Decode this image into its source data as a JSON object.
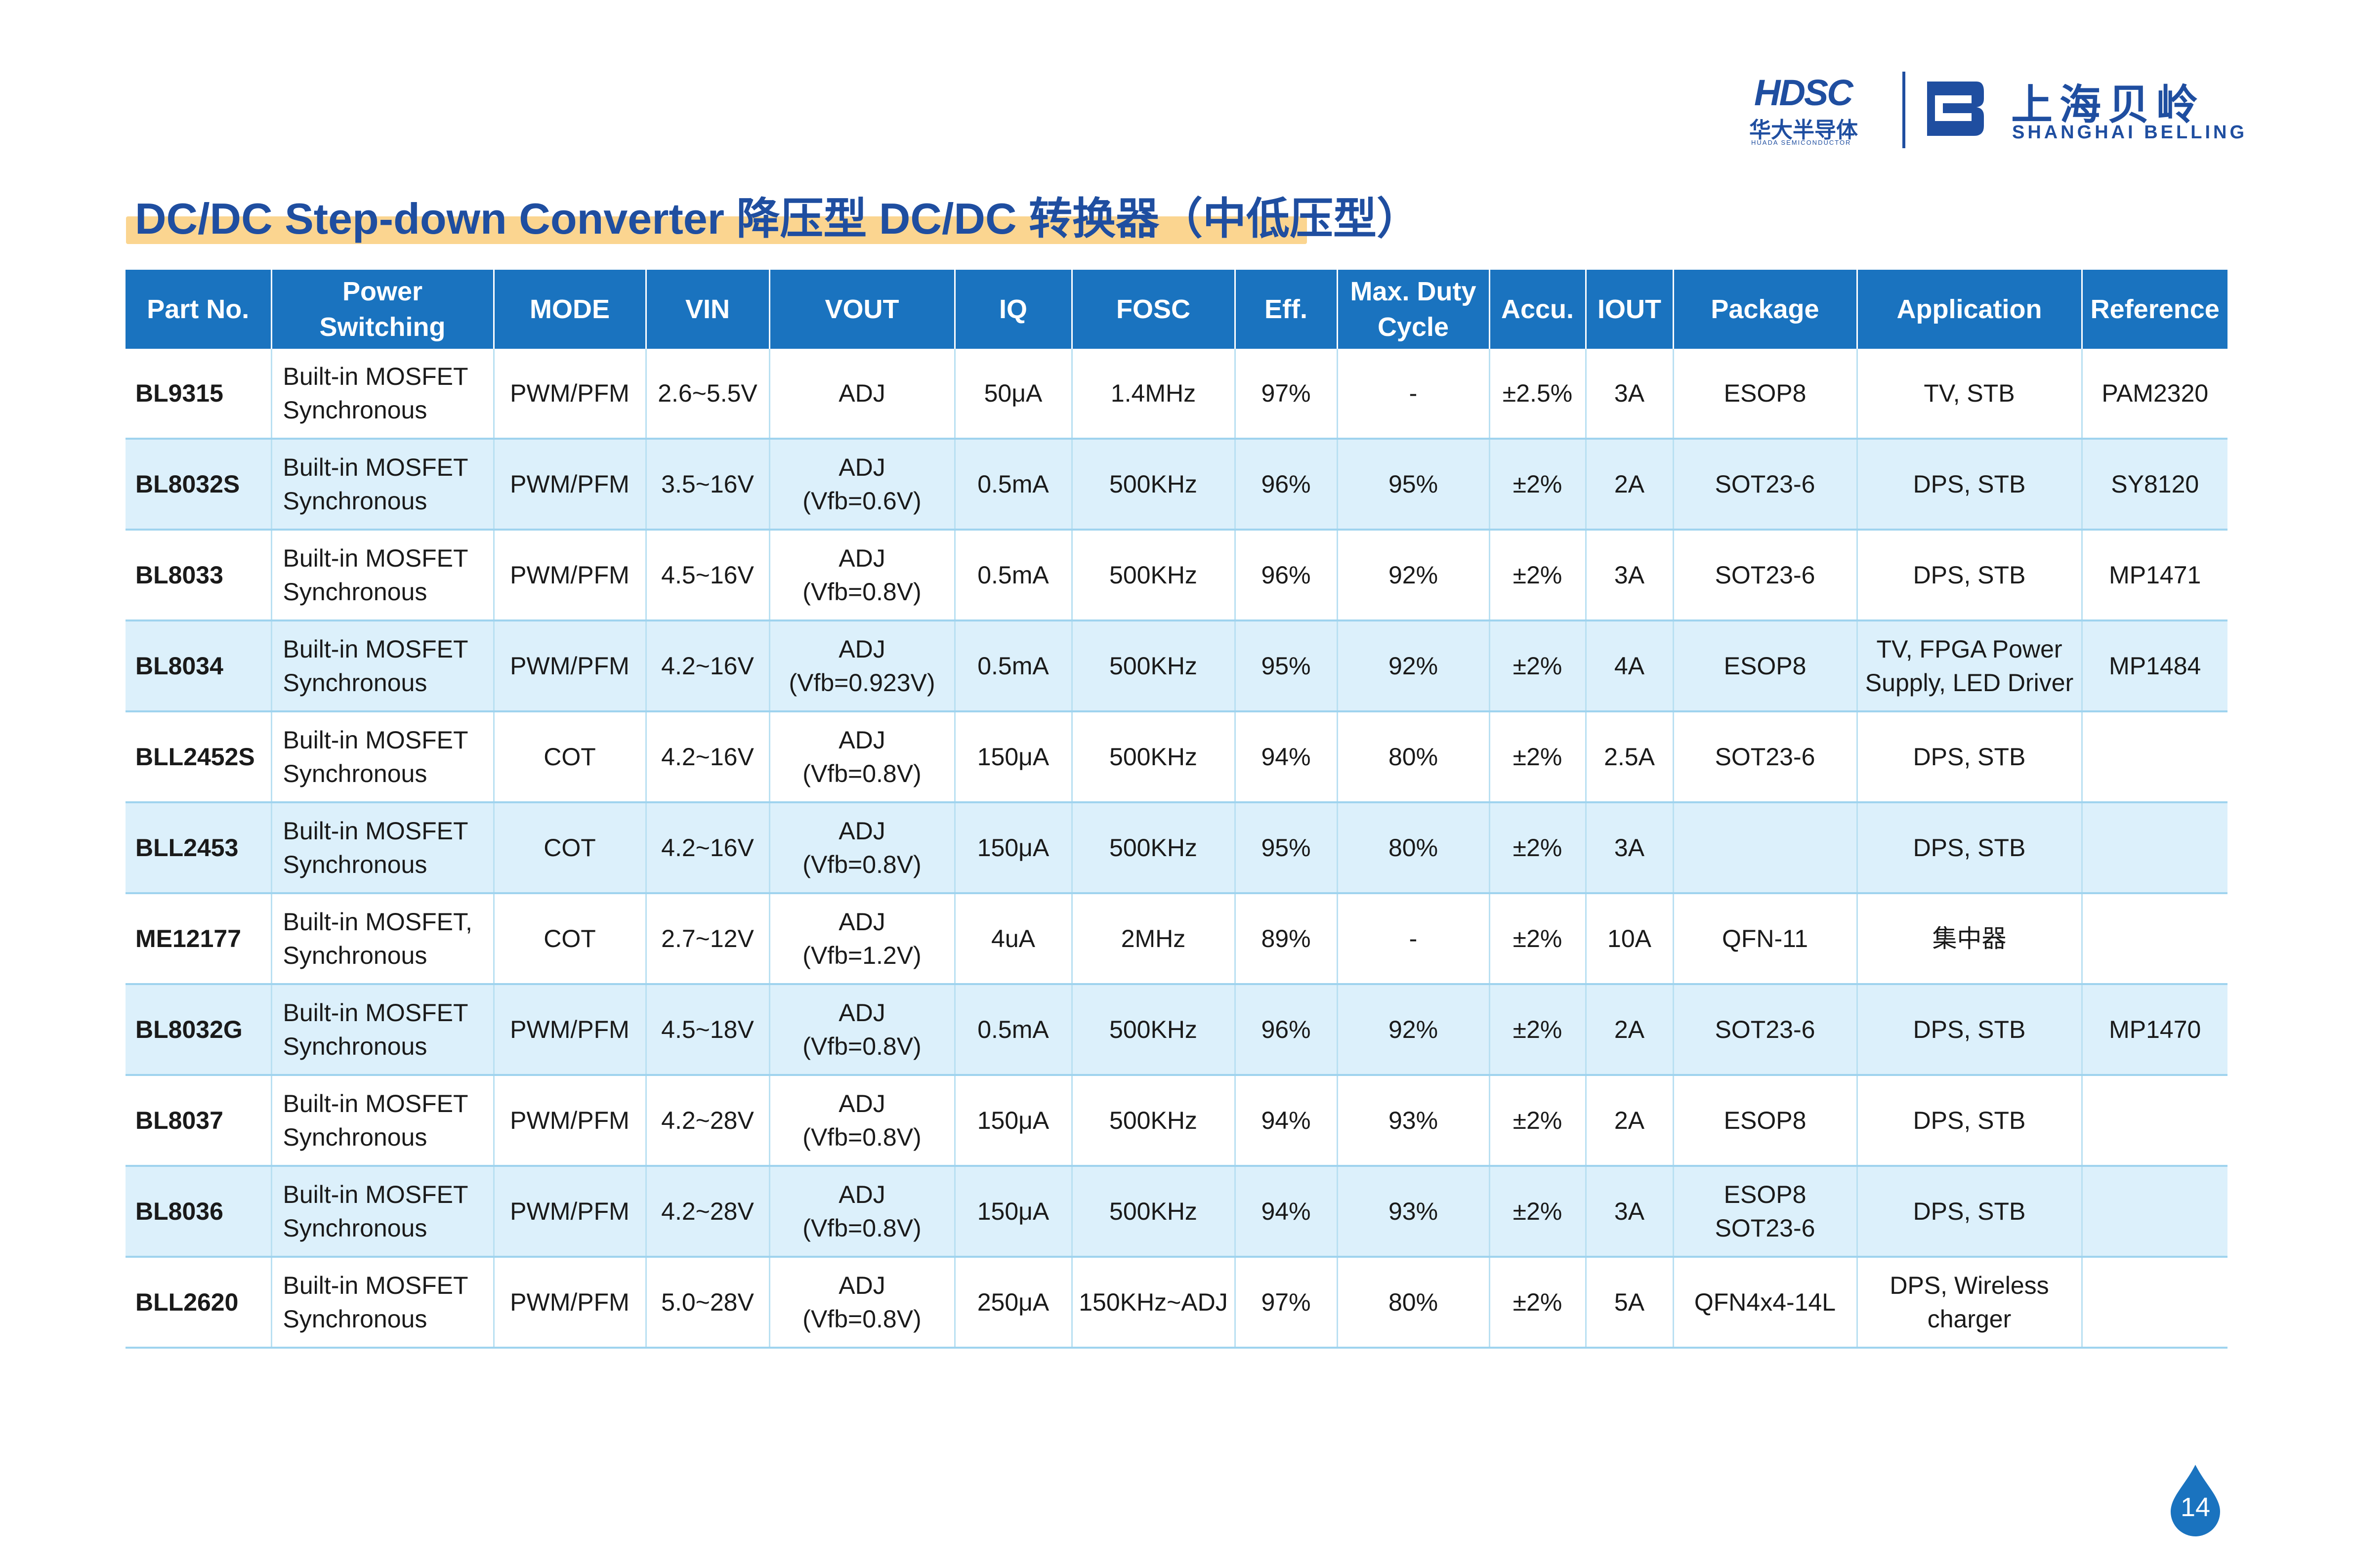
{
  "header": {
    "hdsc_mark": "HDSC",
    "hdsc_cn": "华大半导体",
    "hdsc_en": "HUADA SEMICONDUCTOR",
    "belling_cn": "上海贝岭",
    "belling_en": "SHANGHAI BELLING"
  },
  "title": "DC/DC Step-down Converter 降压型 DC/DC 转换器（中低压型）",
  "table": {
    "headers": [
      "Part No.",
      "Power\nSwitching",
      "MODE",
      "VIN",
      "VOUT",
      "IQ",
      "FOSC",
      "Eff.",
      "Max. Duty\nCycle",
      "Accu.",
      "IOUT",
      "Package",
      "Application",
      "Reference"
    ],
    "rows": [
      [
        "BL9315",
        "Built-in MOSFET\nSynchronous",
        "PWM/PFM",
        "2.6~5.5V",
        "ADJ",
        "50μA",
        "1.4MHz",
        "97%",
        "-",
        "±2.5%",
        "3A",
        "ESOP8",
        "TV, STB",
        "PAM2320"
      ],
      [
        "BL8032S",
        "Built-in MOSFET\nSynchronous",
        "PWM/PFM",
        "3.5~16V",
        "ADJ\n(Vfb=0.6V)",
        "0.5mA",
        "500KHz",
        "96%",
        "95%",
        "±2%",
        "2A",
        "SOT23-6",
        "DPS, STB",
        "SY8120"
      ],
      [
        "BL8033",
        "Built-in MOSFET\nSynchronous",
        "PWM/PFM",
        "4.5~16V",
        "ADJ\n(Vfb=0.8V)",
        "0.5mA",
        "500KHz",
        "96%",
        "92%",
        "±2%",
        "3A",
        "SOT23-6",
        "DPS, STB",
        "MP1471"
      ],
      [
        "BL8034",
        "Built-in MOSFET\nSynchronous",
        "PWM/PFM",
        "4.2~16V",
        "ADJ\n(Vfb=0.923V)",
        "0.5mA",
        "500KHz",
        "95%",
        "92%",
        "±2%",
        "4A",
        "ESOP8",
        "TV, FPGA Power\nSupply, LED Driver",
        "MP1484"
      ],
      [
        "BLL2452S",
        "Built-in MOSFET\nSynchronous",
        "COT",
        "4.2~16V",
        "ADJ\n(Vfb=0.8V)",
        "150μA",
        "500KHz",
        "94%",
        "80%",
        "±2%",
        "2.5A",
        "SOT23-6",
        "DPS, STB",
        ""
      ],
      [
        "BLL2453",
        "Built-in MOSFET\nSynchronous",
        "COT",
        "4.2~16V",
        "ADJ\n(Vfb=0.8V)",
        "150μA",
        "500KHz",
        "95%",
        "80%",
        "±2%",
        "3A",
        "",
        "DPS, STB",
        ""
      ],
      [
        "ME12177",
        "Built-in MOSFET,\nSynchronous",
        "COT",
        "2.7~12V",
        "ADJ\n(Vfb=1.2V)",
        "4uA",
        "2MHz",
        "89%",
        "-",
        "±2%",
        "10A",
        "QFN-11",
        "集中器",
        ""
      ],
      [
        "BL8032G",
        "Built-in MOSFET\nSynchronous",
        "PWM/PFM",
        "4.5~18V",
        "ADJ\n(Vfb=0.8V)",
        "0.5mA",
        "500KHz",
        "96%",
        "92%",
        "±2%",
        "2A",
        "SOT23-6",
        "DPS, STB",
        "MP1470"
      ],
      [
        "BL8037",
        "Built-in MOSFET\nSynchronous",
        "PWM/PFM",
        "4.2~28V",
        "ADJ\n(Vfb=0.8V)",
        "150μA",
        "500KHz",
        "94%",
        "93%",
        "±2%",
        "2A",
        "ESOP8",
        "DPS, STB",
        ""
      ],
      [
        "BL8036",
        "Built-in MOSFET\nSynchronous",
        "PWM/PFM",
        "4.2~28V",
        "ADJ\n(Vfb=0.8V)",
        "150μA",
        "500KHz",
        "94%",
        "93%",
        "±2%",
        "3A",
        "ESOP8\nSOT23-6",
        "DPS, STB",
        ""
      ],
      [
        "BLL2620",
        "Built-in MOSFET\nSynchronous",
        "PWM/PFM",
        "5.0~28V",
        "ADJ\n(Vfb=0.8V)",
        "250μA",
        "150KHz~ADJ",
        "97%",
        "80%",
        "±2%",
        "5A",
        "QFN4x4-14L",
        "DPS, Wireless\ncharger",
        ""
      ]
    ]
  },
  "page_number": "14",
  "colors": {
    "brand_blue": "#1f4ea0",
    "header_blue": "#1a73bf",
    "row_alt": "#dcf0fb",
    "title_highlight": "#fbd590"
  }
}
